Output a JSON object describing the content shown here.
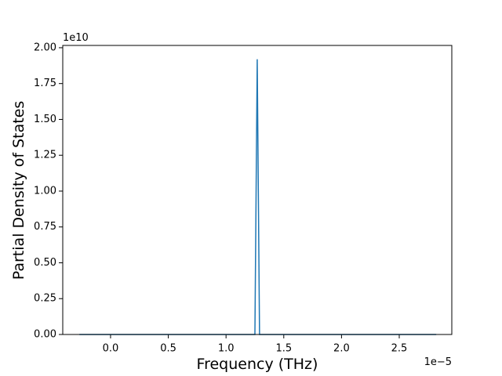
{
  "chart_data": {
    "type": "line",
    "x_label": "Frequency (THz)",
    "y_label": "Partial Density of States",
    "x_offset": "1e−5",
    "y_offset": "1e10",
    "x": [
      -0.27,
      1.25,
      1.27,
      1.29,
      2.82
    ],
    "series": [
      {
        "color": "#1f77b4",
        "values": [
          0,
          0,
          1.92,
          0,
          0
        ]
      }
    ],
    "xlim": [
      -0.414,
      2.955
    ],
    "ylim": [
      0,
      2.016
    ],
    "xticks": [
      {
        "value": 0,
        "label": "0.0"
      },
      {
        "value": 0.5,
        "label": "0.5"
      },
      {
        "value": 1,
        "label": "1.0"
      },
      {
        "value": 1.5,
        "label": "1.5"
      },
      {
        "value": 2,
        "label": "2.0"
      },
      {
        "value": 2.5,
        "label": "2.5"
      }
    ],
    "yticks": [
      {
        "value": 0,
        "label": "0.00"
      },
      {
        "value": 0.25,
        "label": "0.25"
      },
      {
        "value": 0.5,
        "label": "0.50"
      },
      {
        "value": 0.75,
        "label": "0.75"
      },
      {
        "value": 1,
        "label": "1.00"
      },
      {
        "value": 1.25,
        "label": "1.25"
      },
      {
        "value": 1.5,
        "label": "1.50"
      },
      {
        "value": 1.75,
        "label": "1.75"
      },
      {
        "value": 2,
        "label": "2.00"
      }
    ]
  }
}
